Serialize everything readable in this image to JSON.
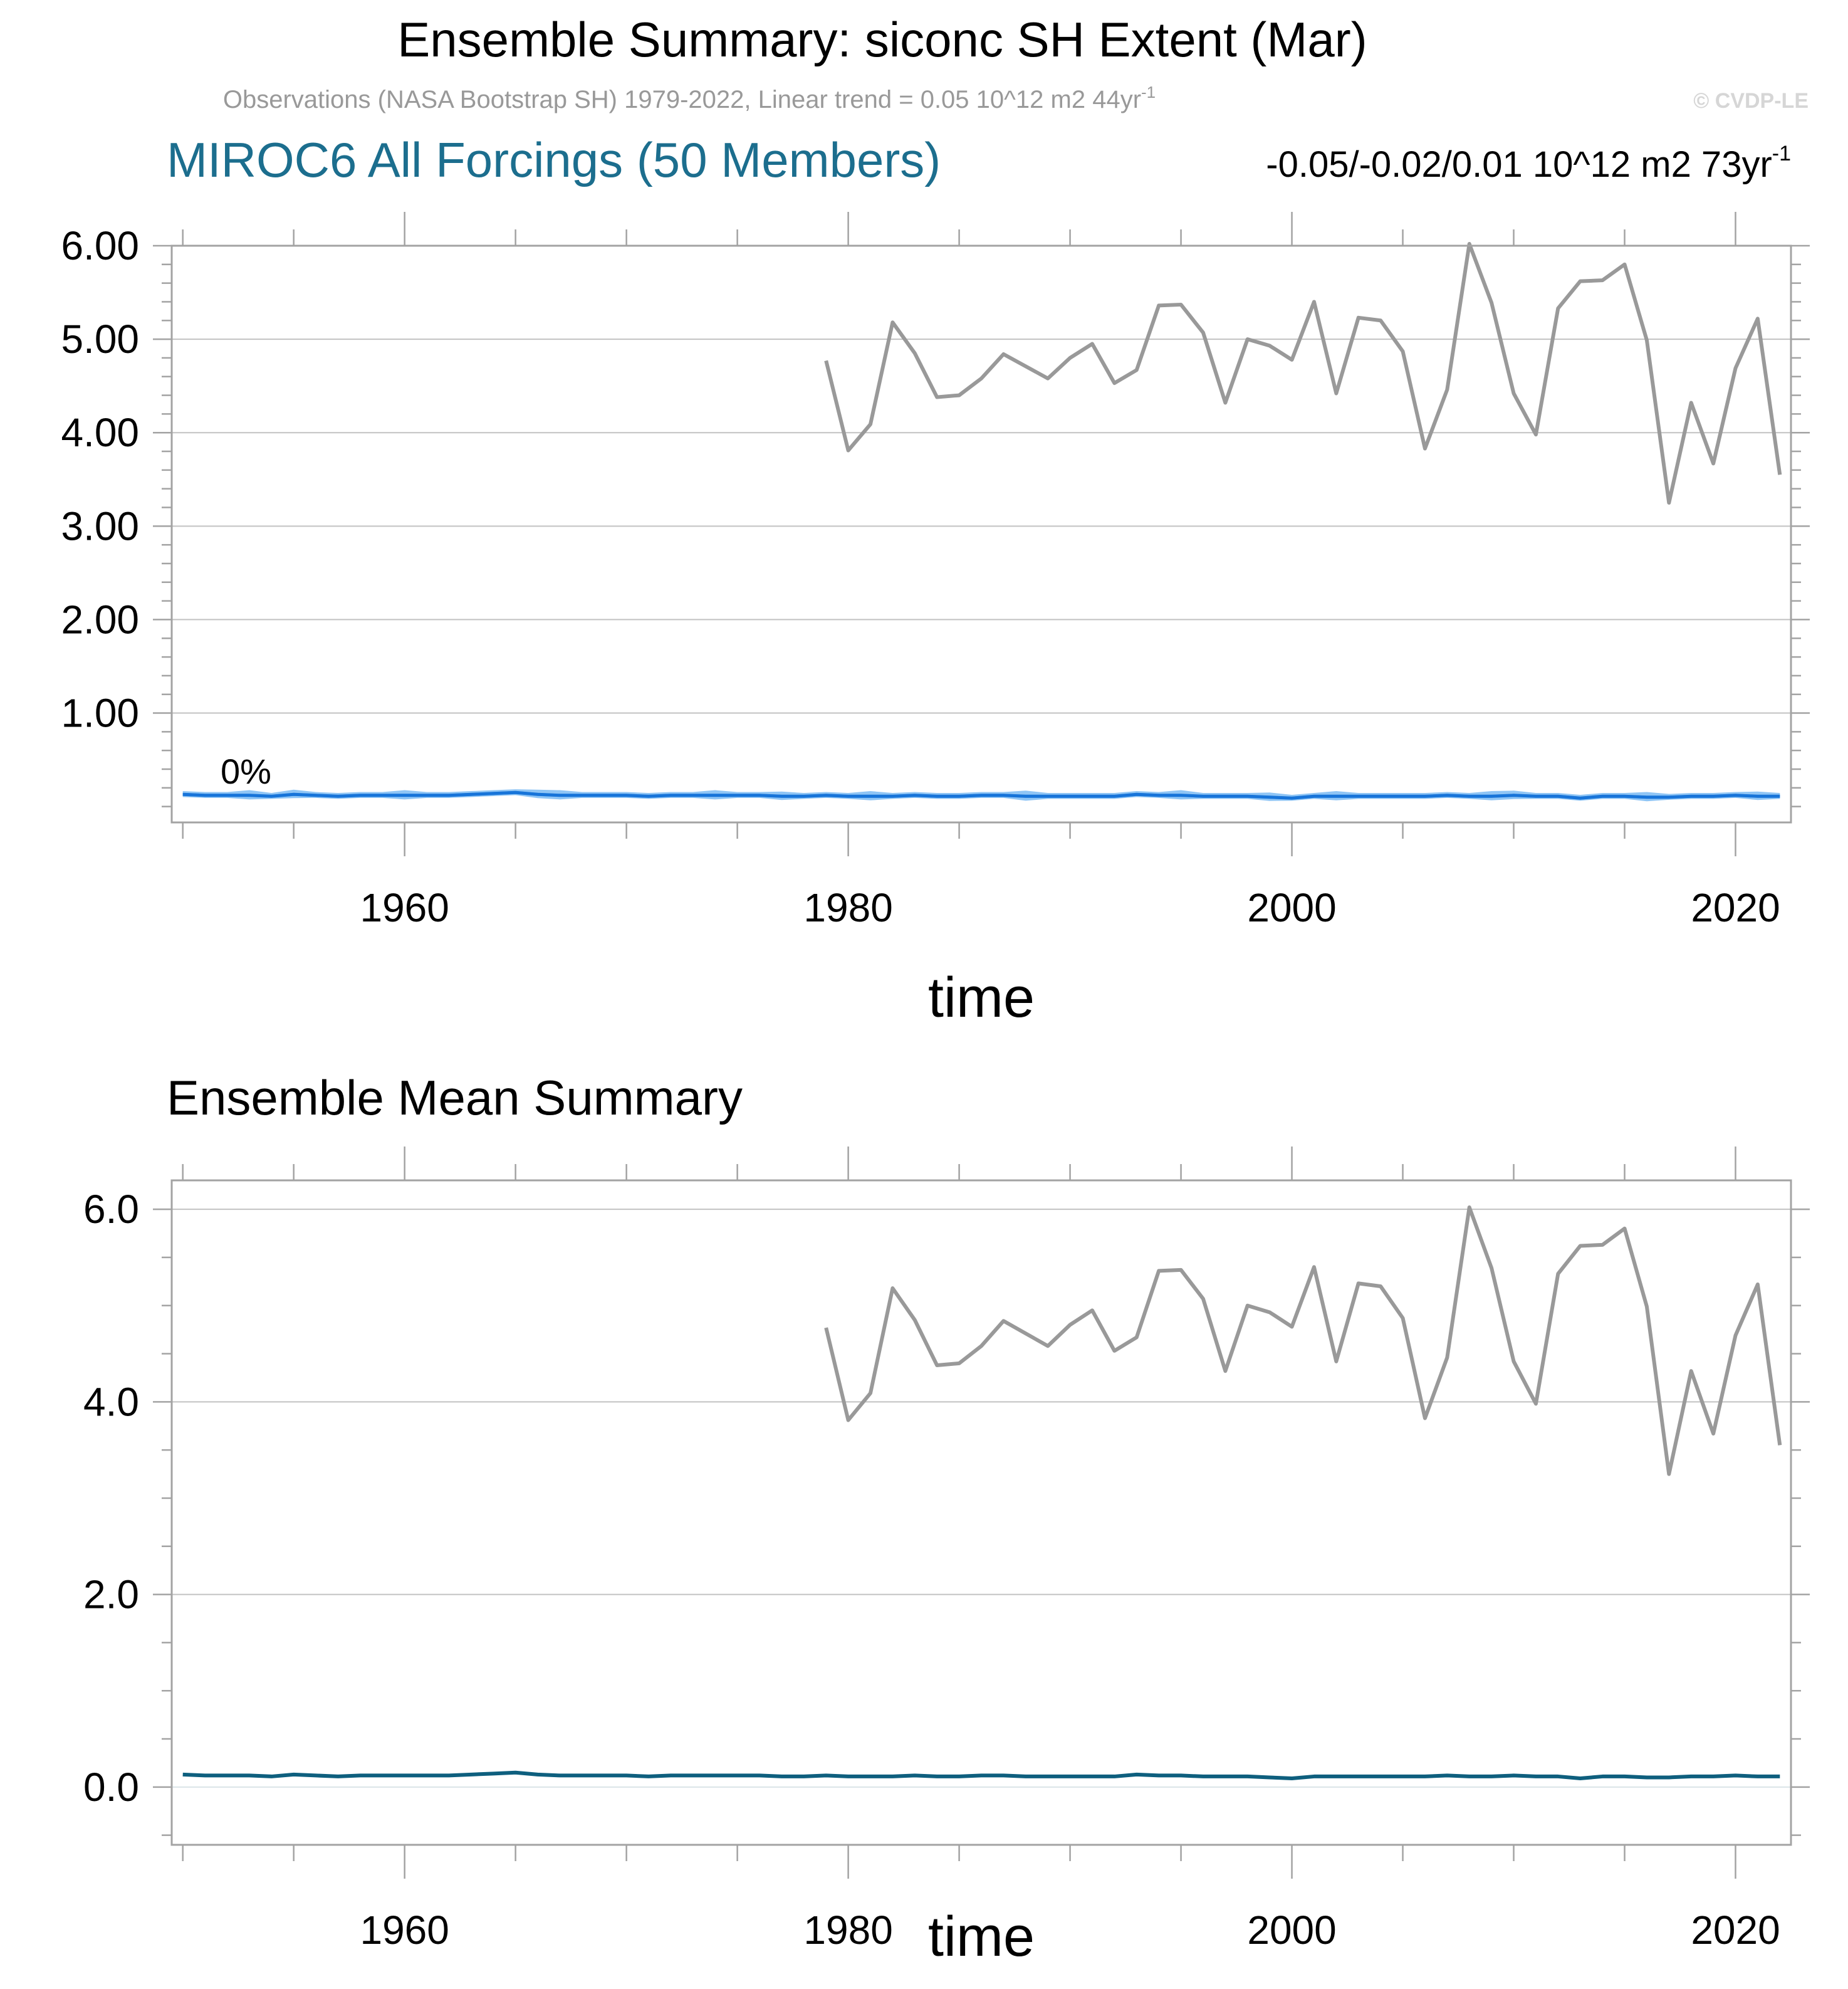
{
  "title": "Ensemble Summary: siconc SH Extent (Mar)",
  "subtitle": {
    "text": "Observations (NASA Bootstrap SH) 1979-2022, Linear trend = 0.05 10^12 m2 44yr",
    "sup": "-1"
  },
  "copyright": "© CVDP-LE",
  "colors": {
    "observations": "#999999",
    "ensemble_band": "#8fc5f5",
    "ensemble_inner": "#4aa3ee",
    "ensemble_member": "#1774d9",
    "ensemble_mean": "#0e5f7e",
    "model_title": "#1c6e8e"
  },
  "observations": {
    "start_year": 1979,
    "values": [
      4.77,
      3.81,
      4.09,
      5.18,
      4.85,
      4.38,
      4.4,
      4.58,
      4.84,
      4.71,
      4.58,
      4.8,
      4.95,
      4.53,
      4.67,
      5.36,
      5.37,
      5.07,
      4.32,
      5.0,
      4.93,
      4.78,
      5.4,
      4.42,
      5.23,
      5.2,
      4.87,
      3.83,
      4.46,
      6.02,
      5.39,
      4.42,
      3.98,
      5.33,
      5.62,
      5.63,
      5.8,
      4.99,
      3.25,
      4.32,
      3.67,
      4.69,
      5.22,
      3.55
    ]
  },
  "ensemble": {
    "start_year": 1950,
    "mean": [
      0.13,
      0.12,
      0.12,
      0.12,
      0.11,
      0.13,
      0.12,
      0.11,
      0.12,
      0.12,
      0.12,
      0.12,
      0.12,
      0.13,
      0.14,
      0.15,
      0.13,
      0.12,
      0.12,
      0.12,
      0.12,
      0.11,
      0.12,
      0.12,
      0.12,
      0.12,
      0.12,
      0.11,
      0.11,
      0.12,
      0.11,
      0.11,
      0.11,
      0.12,
      0.11,
      0.11,
      0.12,
      0.12,
      0.11,
      0.11,
      0.11,
      0.11,
      0.11,
      0.13,
      0.12,
      0.12,
      0.11,
      0.11,
      0.11,
      0.1,
      0.09,
      0.11,
      0.11,
      0.11,
      0.11,
      0.11,
      0.11,
      0.12,
      0.11,
      0.11,
      0.12,
      0.11,
      0.11,
      0.09,
      0.11,
      0.11,
      0.1,
      0.1,
      0.11,
      0.11,
      0.12,
      0.11,
      0.11
    ],
    "spread": 0.035,
    "max_spread": 0.06
  },
  "panel1": {
    "model_title": "MIROC6 All Forcings (50 Members)",
    "trend_text": "-0.05/-0.02/0.01 10^12 m2 73yr",
    "trend_sup": "-1",
    "percent_label": "0%",
    "xlabel": "time",
    "ylim": [
      -0.17,
      6.0
    ],
    "xlim": [
      1949.5,
      2022.5
    ],
    "yticks": [
      1.0,
      2.0,
      3.0,
      4.0,
      5.0,
      6.0
    ],
    "ytick_labels": [
      "1.00",
      "2.00",
      "3.00",
      "4.00",
      "5.00",
      "6.00"
    ],
    "xticks": [
      1960,
      1980,
      2000,
      2020
    ],
    "xtick_labels": [
      "1960",
      "1980",
      "2000",
      "2020"
    ]
  },
  "panel2": {
    "title": "Ensemble Mean Summary",
    "xlabel": "time",
    "ylim": [
      -0.6,
      6.3
    ],
    "xlim": [
      1949.5,
      2022.5
    ],
    "yticks": [
      0.0,
      2.0,
      4.0,
      6.0
    ],
    "ytick_labels": [
      "0.0",
      "2.0",
      "4.0",
      "6.0"
    ],
    "xticks": [
      1960,
      1980,
      2000,
      2020
    ],
    "xtick_labels": [
      "1960",
      "1980",
      "2000",
      "2020"
    ]
  }
}
